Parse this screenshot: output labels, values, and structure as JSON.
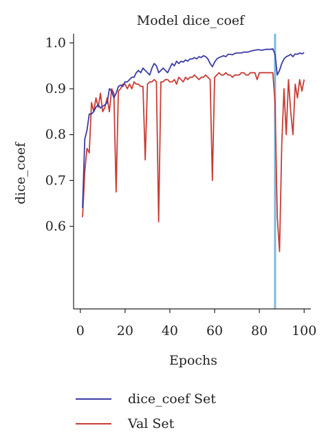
{
  "chart_data": {
    "type": "line",
    "title": "Model dice_coef",
    "xlabel": "Epochs",
    "ylabel": "dice_coef",
    "xlim": [
      -3,
      103
    ],
    "ylim": [
      0.42,
      1.02
    ],
    "xticks": [
      0,
      20,
      40,
      60,
      80,
      100
    ],
    "yticks": [
      0.6,
      0.7,
      0.8,
      0.9,
      1.0
    ],
    "xtick_labels": [
      "0",
      "20",
      "40",
      "60",
      "80",
      "100"
    ],
    "ytick_labels": [
      "0.6",
      "0.7",
      "0.8",
      "0.9",
      "1.0"
    ],
    "grid": false,
    "legend_position": "bottom-left",
    "vertical_marker": {
      "x": 87,
      "color": "#7fb8dc"
    },
    "series": [
      {
        "name": "dice_coef Set",
        "color": "#3a3aa8",
        "x": [
          1,
          2,
          3,
          4,
          5,
          6,
          7,
          8,
          9,
          10,
          11,
          12,
          13,
          14,
          15,
          16,
          17,
          18,
          19,
          20,
          21,
          22,
          23,
          24,
          25,
          26,
          27,
          28,
          29,
          30,
          31,
          32,
          33,
          34,
          35,
          36,
          37,
          38,
          39,
          40,
          41,
          42,
          43,
          44,
          45,
          46,
          47,
          48,
          49,
          50,
          51,
          52,
          53,
          54,
          55,
          56,
          57,
          58,
          59,
          60,
          61,
          62,
          63,
          64,
          65,
          66,
          67,
          68,
          69,
          70,
          71,
          72,
          73,
          74,
          75,
          76,
          77,
          78,
          79,
          80,
          81,
          82,
          83,
          84,
          85,
          86,
          87,
          88,
          89,
          90,
          91,
          92,
          93,
          94,
          95,
          96,
          97,
          98,
          99,
          100
        ],
        "values": [
          0.64,
          0.79,
          0.81,
          0.845,
          0.845,
          0.85,
          0.86,
          0.865,
          0.858,
          0.862,
          0.865,
          0.87,
          0.9,
          0.895,
          0.88,
          0.89,
          0.905,
          0.908,
          0.905,
          0.915,
          0.915,
          0.92,
          0.925,
          0.925,
          0.935,
          0.94,
          0.935,
          0.945,
          0.94,
          0.935,
          0.93,
          0.945,
          0.955,
          0.95,
          0.935,
          0.94,
          0.945,
          0.94,
          0.935,
          0.945,
          0.955,
          0.95,
          0.96,
          0.955,
          0.96,
          0.958,
          0.963,
          0.96,
          0.965,
          0.965,
          0.968,
          0.965,
          0.97,
          0.968,
          0.972,
          0.97,
          0.965,
          0.955,
          0.948,
          0.958,
          0.965,
          0.968,
          0.97,
          0.972,
          0.97,
          0.975,
          0.975,
          0.974,
          0.977,
          0.978,
          0.978,
          0.978,
          0.98,
          0.98,
          0.98,
          0.982,
          0.983,
          0.984,
          0.985,
          0.985,
          0.984,
          0.985,
          0.986,
          0.986,
          0.986,
          0.987,
          0.975,
          0.93,
          0.94,
          0.955,
          0.965,
          0.97,
          0.972,
          0.975,
          0.97,
          0.976,
          0.975,
          0.978,
          0.976,
          0.979
        ]
      },
      {
        "name": "Val Set",
        "color": "#c83c34",
        "x": [
          1,
          2,
          3,
          4,
          5,
          6,
          7,
          8,
          9,
          10,
          11,
          12,
          13,
          14,
          15,
          16,
          17,
          18,
          19,
          20,
          21,
          22,
          23,
          24,
          25,
          26,
          27,
          28,
          29,
          30,
          31,
          32,
          33,
          34,
          35,
          36,
          37,
          38,
          39,
          40,
          41,
          42,
          43,
          44,
          45,
          46,
          47,
          48,
          49,
          50,
          51,
          52,
          53,
          54,
          55,
          56,
          57,
          58,
          59,
          60,
          61,
          62,
          63,
          64,
          65,
          66,
          67,
          68,
          69,
          70,
          71,
          72,
          73,
          74,
          75,
          76,
          77,
          78,
          79,
          80,
          81,
          82,
          83,
          84,
          85,
          86,
          87,
          88,
          89,
          90,
          91,
          92,
          93,
          94,
          95,
          96,
          97,
          98,
          99,
          100
        ],
        "values": [
          0.62,
          0.72,
          0.77,
          0.76,
          0.87,
          0.85,
          0.88,
          0.86,
          0.89,
          0.85,
          0.86,
          0.88,
          0.85,
          0.9,
          0.89,
          0.675,
          0.895,
          0.9,
          0.91,
          0.91,
          0.9,
          0.91,
          0.9,
          0.915,
          0.91,
          0.91,
          0.905,
          0.905,
          0.745,
          0.91,
          0.915,
          0.915,
          0.92,
          0.915,
          0.61,
          0.915,
          0.915,
          0.92,
          0.92,
          0.915,
          0.915,
          0.92,
          0.91,
          0.925,
          0.92,
          0.915,
          0.925,
          0.92,
          0.925,
          0.925,
          0.93,
          0.925,
          0.92,
          0.925,
          0.925,
          0.93,
          0.925,
          0.92,
          0.7,
          0.925,
          0.93,
          0.935,
          0.93,
          0.93,
          0.935,
          0.93,
          0.93,
          0.925,
          0.93,
          0.93,
          0.93,
          0.935,
          0.935,
          0.93,
          0.93,
          0.935,
          0.935,
          0.935,
          0.92,
          0.935,
          0.935,
          0.935,
          0.935,
          0.935,
          0.935,
          0.935,
          0.87,
          0.62,
          0.545,
          0.78,
          0.9,
          0.8,
          0.92,
          0.85,
          0.8,
          0.91,
          0.88,
          0.92,
          0.895,
          0.92
        ]
      }
    ]
  }
}
